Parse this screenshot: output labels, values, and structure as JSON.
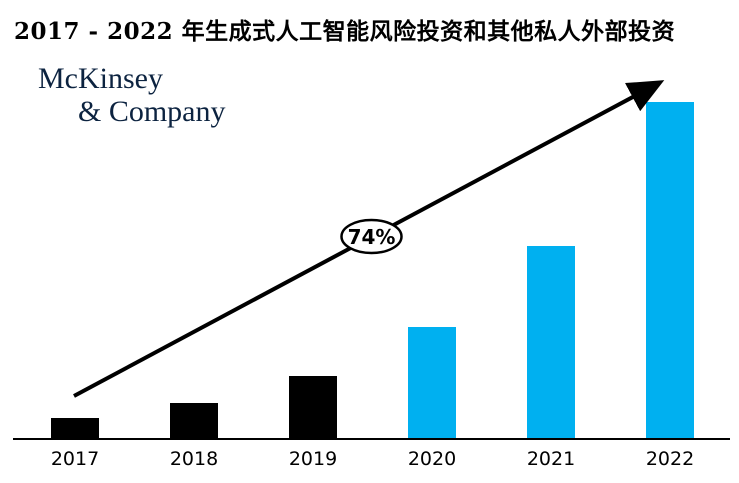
{
  "title": "2017 - 2022 年生成式人工智能风险投资和其他私人外部投资",
  "logo": {
    "line1": "McKinsey",
    "line2": "& Company",
    "color": "#0c2340"
  },
  "colors": {
    "background": "#ffffff",
    "bar_black": "#000000",
    "bar_blue": "#00B0F0",
    "axis": "#000000",
    "arrow": "#000000",
    "annotation_fill": "#ffffff",
    "annotation_border": "#000000"
  },
  "chart_data": {
    "type": "bar",
    "title": "2017 - 2022 年生成式人工智能风险投资和其他私人外部投资",
    "categories": [
      "2017",
      "2018",
      "2019",
      "2020",
      "2021",
      "2022"
    ],
    "values": [
      6,
      10.5,
      18.5,
      33,
      57,
      100
    ],
    "value_note": "relative index estimated from bar heights; 2022 = 100; no y-axis shown",
    "bar_colors": [
      "#000000",
      "#000000",
      "#000000",
      "#00B0F0",
      "#00B0F0",
      "#00B0F0"
    ],
    "xlabel": "",
    "ylabel": "",
    "y_axis_shown": false,
    "grid": false,
    "legend": false,
    "annotation": {
      "label": "74%",
      "type": "growth-trend-arrow",
      "description": "upward arrow from 2017 bar to 2022 bar with 74% badge"
    }
  }
}
